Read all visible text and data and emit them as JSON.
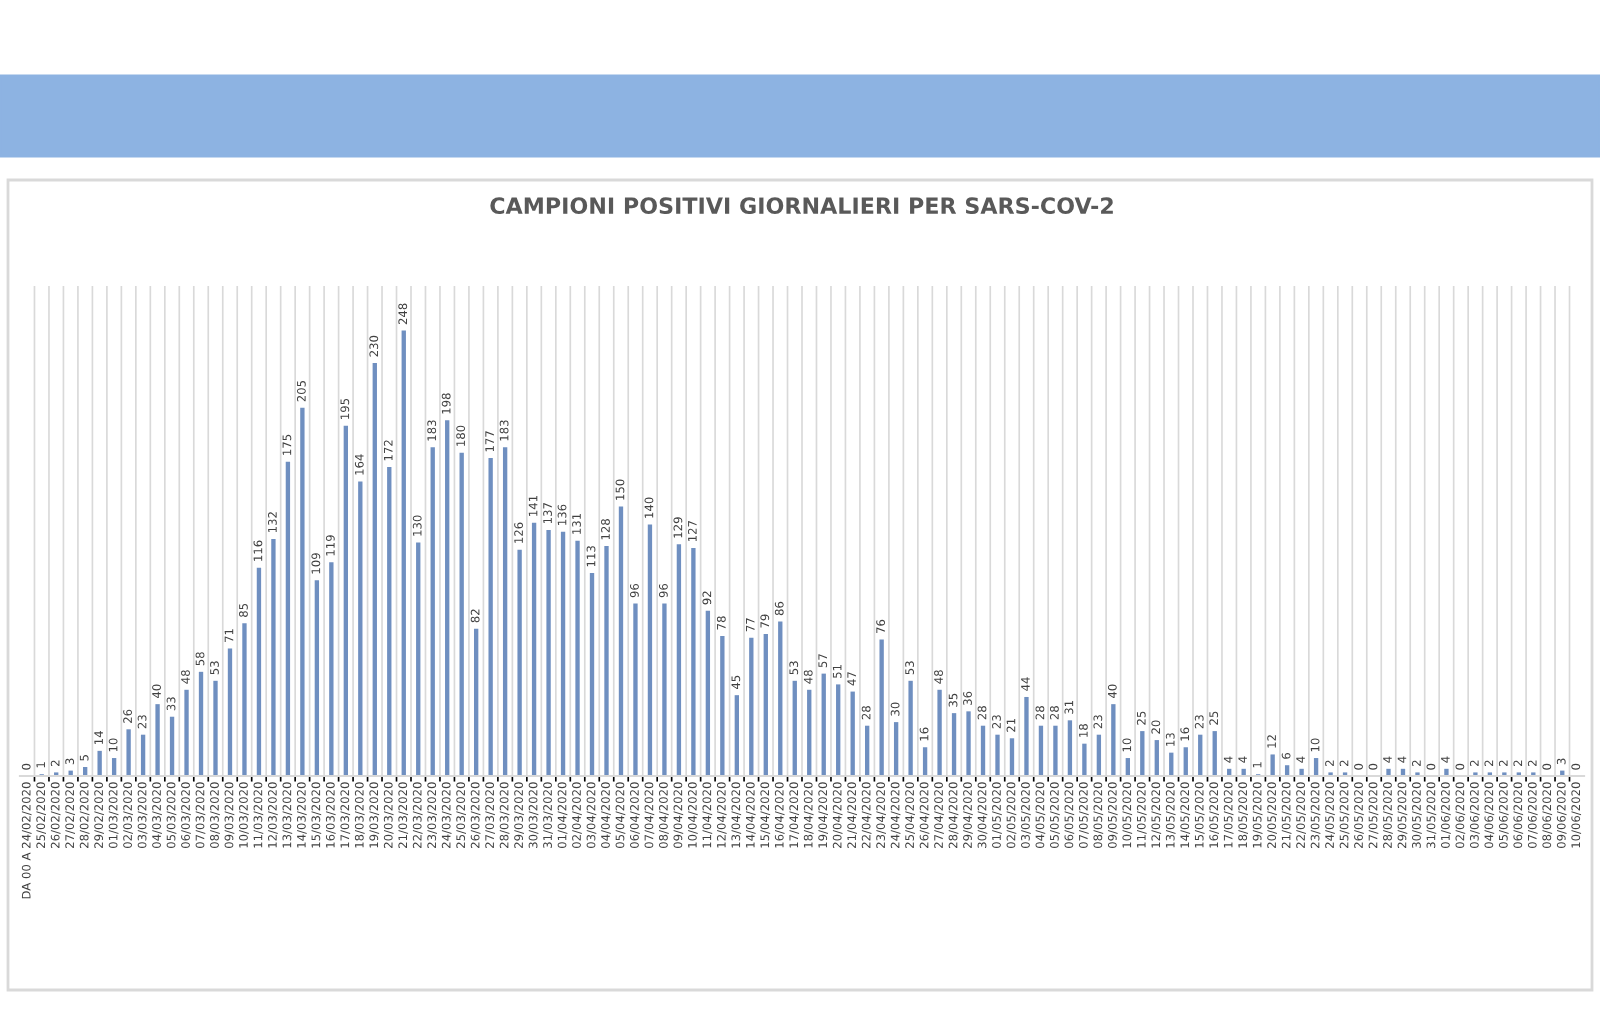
{
  "chart_data": {
    "type": "bar",
    "title": "CAMPIONI POSITIVI GIORNALIERI PER SARS-COV-2",
    "categories": [
      "DA 00 A 24/02/2020",
      "25/02/2020",
      "26/02/2020",
      "27/02/2020",
      "28/02/2020",
      "29/02/2020",
      "01/03/2020",
      "02/03/2020",
      "03/03/2020",
      "04/03/2020",
      "05/03/2020",
      "06/03/2020",
      "07/03/2020",
      "08/03/2020",
      "09/03/2020",
      "10/03/2020",
      "11/03/2020",
      "12/03/2020",
      "13/03/2020",
      "14/03/2020",
      "15/03/2020",
      "16/03/2020",
      "17/03/2020",
      "18/03/2020",
      "19/03/2020",
      "20/03/2020",
      "21/03/2020",
      "22/03/2020",
      "23/03/2020",
      "24/03/2020",
      "25/03/2020",
      "26/03/2020",
      "27/03/2020",
      "28/03/2020",
      "29/03/2020",
      "30/03/2020",
      "31/03/2020",
      "01/04/2020",
      "02/04/2020",
      "03/04/2020",
      "04/04/2020",
      "05/04/2020",
      "06/04/2020",
      "07/04/2020",
      "08/04/2020",
      "09/04/2020",
      "10/04/2020",
      "11/04/2020",
      "12/04/2020",
      "13/04/2020",
      "14/04/2020",
      "15/04/2020",
      "16/04/2020",
      "17/04/2020",
      "18/04/2020",
      "19/04/2020",
      "20/04/2020",
      "21/04/2020",
      "22/04/2020",
      "23/04/2020",
      "24/04/2020",
      "25/04/2020",
      "26/04/2020",
      "27/04/2020",
      "28/04/2020",
      "29/04/2020",
      "30/04/2020",
      "01/05/2020",
      "02/05/2020",
      "03/05/2020",
      "04/05/2020",
      "05/05/2020",
      "06/05/2020",
      "07/05/2020",
      "08/05/2020",
      "09/05/2020",
      "10/05/2020",
      "11/05/2020",
      "12/05/2020",
      "13/05/2020",
      "14/05/2020",
      "15/05/2020",
      "16/05/2020",
      "17/05/2020",
      "18/05/2020",
      "19/05/2020",
      "20/05/2020",
      "21/05/2020",
      "22/05/2020",
      "23/05/2020",
      "24/05/2020",
      "25/05/2020",
      "26/05/2020",
      "27/05/2020",
      "28/05/2020",
      "29/05/2020",
      "30/05/2020",
      "31/05/2020",
      "01/06/2020",
      "02/06/2020",
      "03/06/2020",
      "04/06/2020",
      "05/06/2020",
      "06/06/2020",
      "07/06/2020",
      "08/06/2020",
      "09/06/2020",
      "10/06/2020"
    ],
    "values": [
      0,
      1,
      2,
      3,
      5,
      14,
      10,
      26,
      23,
      40,
      33,
      48,
      58,
      53,
      71,
      85,
      116,
      132,
      175,
      205,
      109,
      119,
      195,
      164,
      230,
      172,
      248,
      130,
      183,
      198,
      180,
      82,
      177,
      183,
      126,
      141,
      137,
      136,
      131,
      113,
      128,
      150,
      96,
      140,
      96,
      129,
      127,
      92,
      78,
      45,
      77,
      79,
      86,
      53,
      48,
      57,
      51,
      47,
      28,
      76,
      30,
      53,
      16,
      48,
      35,
      36,
      28,
      23,
      21,
      44,
      28,
      28,
      31,
      18,
      23,
      40,
      10,
      25,
      20,
      13,
      16,
      23,
      25,
      4,
      4,
      1,
      12,
      6,
      4,
      10,
      2,
      2,
      0,
      0,
      4,
      4,
      2,
      0,
      4,
      0,
      2,
      2,
      2,
      2,
      2,
      0,
      3,
      0
    ],
    "color": "#6f8fc0",
    "data_labels": true,
    "grid": "x",
    "legend": false
  }
}
